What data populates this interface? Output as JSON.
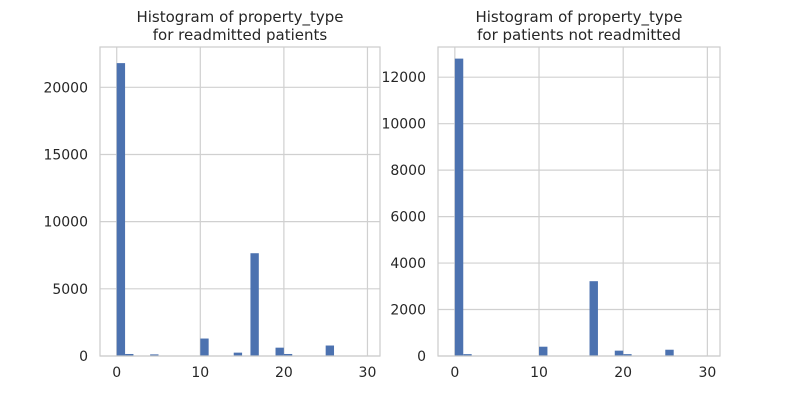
{
  "chart_data": [
    {
      "type": "bar",
      "title_line1": "Histogram of property_type",
      "title_line2": "for readmitted patients",
      "xlabel": "",
      "ylabel": "",
      "xlim": [
        -2,
        31.5
      ],
      "ylim": [
        0,
        23000
      ],
      "xticks": [
        0,
        10,
        20,
        30
      ],
      "yticks": [
        0,
        5000,
        10000,
        15000,
        20000
      ],
      "bin_width": 1.0,
      "bins": [
        {
          "x": 0,
          "value": 21800
        },
        {
          "x": 1,
          "value": 150
        },
        {
          "x": 4,
          "value": 120
        },
        {
          "x": 10,
          "value": 1300
        },
        {
          "x": 14,
          "value": 250
        },
        {
          "x": 16,
          "value": 7650
        },
        {
          "x": 19,
          "value": 620
        },
        {
          "x": 20,
          "value": 150
        },
        {
          "x": 25,
          "value": 780
        }
      ],
      "color": "#4c72b0"
    },
    {
      "type": "bar",
      "title_line1": "Histogram of property_type",
      "title_line2": "for patients not readmitted",
      "xlabel": "",
      "ylabel": "",
      "xlim": [
        -2,
        31.5
      ],
      "ylim": [
        0,
        13300
      ],
      "xticks": [
        0,
        10,
        20,
        30
      ],
      "yticks": [
        0,
        2000,
        4000,
        6000,
        8000,
        10000,
        12000
      ],
      "bin_width": 1.0,
      "bins": [
        {
          "x": 0,
          "value": 12800
        },
        {
          "x": 1,
          "value": 80
        },
        {
          "x": 10,
          "value": 400
        },
        {
          "x": 16,
          "value": 3220
        },
        {
          "x": 19,
          "value": 230
        },
        {
          "x": 20,
          "value": 80
        },
        {
          "x": 25,
          "value": 270
        }
      ],
      "color": "#4c72b0"
    }
  ]
}
